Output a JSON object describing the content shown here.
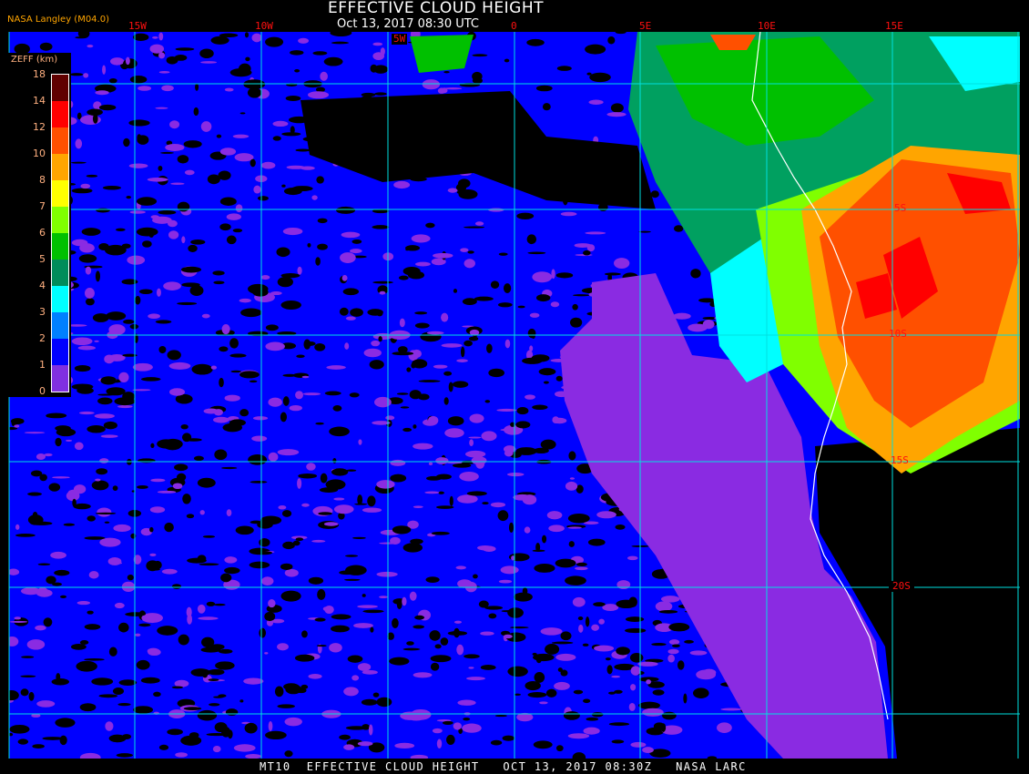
{
  "header": {
    "title": "EFFECTIVE CLOUD HEIGHT",
    "subtitle": "Oct 13, 2017 08:30 UTC",
    "producer": "NASA Langley (M04.0)"
  },
  "footer": {
    "caption": "MT10  EFFECTIVE CLOUD HEIGHT   OCT 13, 2017 08:30Z   NASA LARC"
  },
  "grid": {
    "longitude_labels": [
      "15W",
      "10W",
      "5W",
      "0",
      "5E",
      "10E",
      "15E"
    ],
    "latitude_labels": [
      "5S",
      "10S",
      "15S",
      "20S"
    ],
    "grid_color": "#00e0e0",
    "label_color": "#ff1010"
  },
  "legend": {
    "title": "ZEFF (km)",
    "tick_labels": [
      "18",
      "14",
      "12",
      "10",
      "8",
      "7",
      "6",
      "5",
      "4",
      "3",
      "2",
      "1",
      "0"
    ],
    "colors": [
      "#600000",
      "#ff0000",
      "#ff5000",
      "#ffa500",
      "#ffff00",
      "#80ff00",
      "#00c000",
      "#008c5a",
      "#00ffff",
      "#0080ff",
      "#0000ff",
      "#8030e0"
    ]
  },
  "colors": {
    "no_cloud": "#000000",
    "coastline": "#ffffff"
  }
}
